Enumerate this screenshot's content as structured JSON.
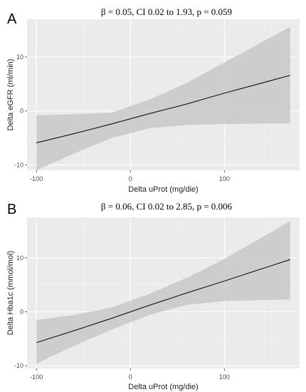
{
  "chart_data": [
    {
      "type": "line",
      "panel_label": "A",
      "annotation": "β = 0.05, CI 0.02 to 1.93, p = 0.059",
      "xlabel": "Delta uProt (mg/die)",
      "ylabel": "Delta eGFR (ml/min)",
      "xlim": [
        -110,
        180
      ],
      "ylim": [
        -11,
        17
      ],
      "x_ticks": [
        -100,
        0,
        100
      ],
      "y_ticks": [
        -10,
        0,
        10
      ],
      "grid": true,
      "background": "#ebebeb",
      "band_color": "#c8c8c8",
      "line_color": "#000000",
      "series": [
        {
          "x": [
            -100,
            -60,
            -20,
            20,
            60,
            100,
            170
          ],
          "y": [
            -5.9,
            -4.2,
            -2.4,
            -0.5,
            1.3,
            3.3,
            6.6
          ],
          "lower": [
            -11.0,
            -7.9,
            -5.0,
            -3.2,
            -2.6,
            -2.4,
            -2.3
          ],
          "upper": [
            -0.8,
            -0.6,
            -0.3,
            2.1,
            5.2,
            9.0,
            15.6
          ]
        }
      ]
    },
    {
      "type": "line",
      "panel_label": "B",
      "annotation": "β = 0.06, CI 0.02 to 2.85, p = 0.006",
      "xlabel": "Delta uProt (mg/die)",
      "ylabel": "Delta Hba1c (mmol/mol)",
      "xlim": [
        -110,
        180
      ],
      "ylim": [
        -10.5,
        17.5
      ],
      "x_ticks": [
        -100,
        0,
        100
      ],
      "y_ticks": [
        -10,
        0,
        10
      ],
      "grid": true,
      "background": "#ebebeb",
      "band_color": "#c8c8c8",
      "line_color": "#000000",
      "series": [
        {
          "x": [
            -100,
            -60,
            -20,
            20,
            60,
            100,
            170
          ],
          "y": [
            -5.7,
            -3.5,
            -1.2,
            1.2,
            3.5,
            5.7,
            9.7
          ],
          "lower": [
            -9.6,
            -6.3,
            -3.3,
            -0.6,
            1.3,
            2.0,
            2.3
          ],
          "upper": [
            -1.5,
            -0.6,
            0.8,
            3.3,
            6.3,
            9.8,
            16.8
          ]
        }
      ]
    }
  ]
}
